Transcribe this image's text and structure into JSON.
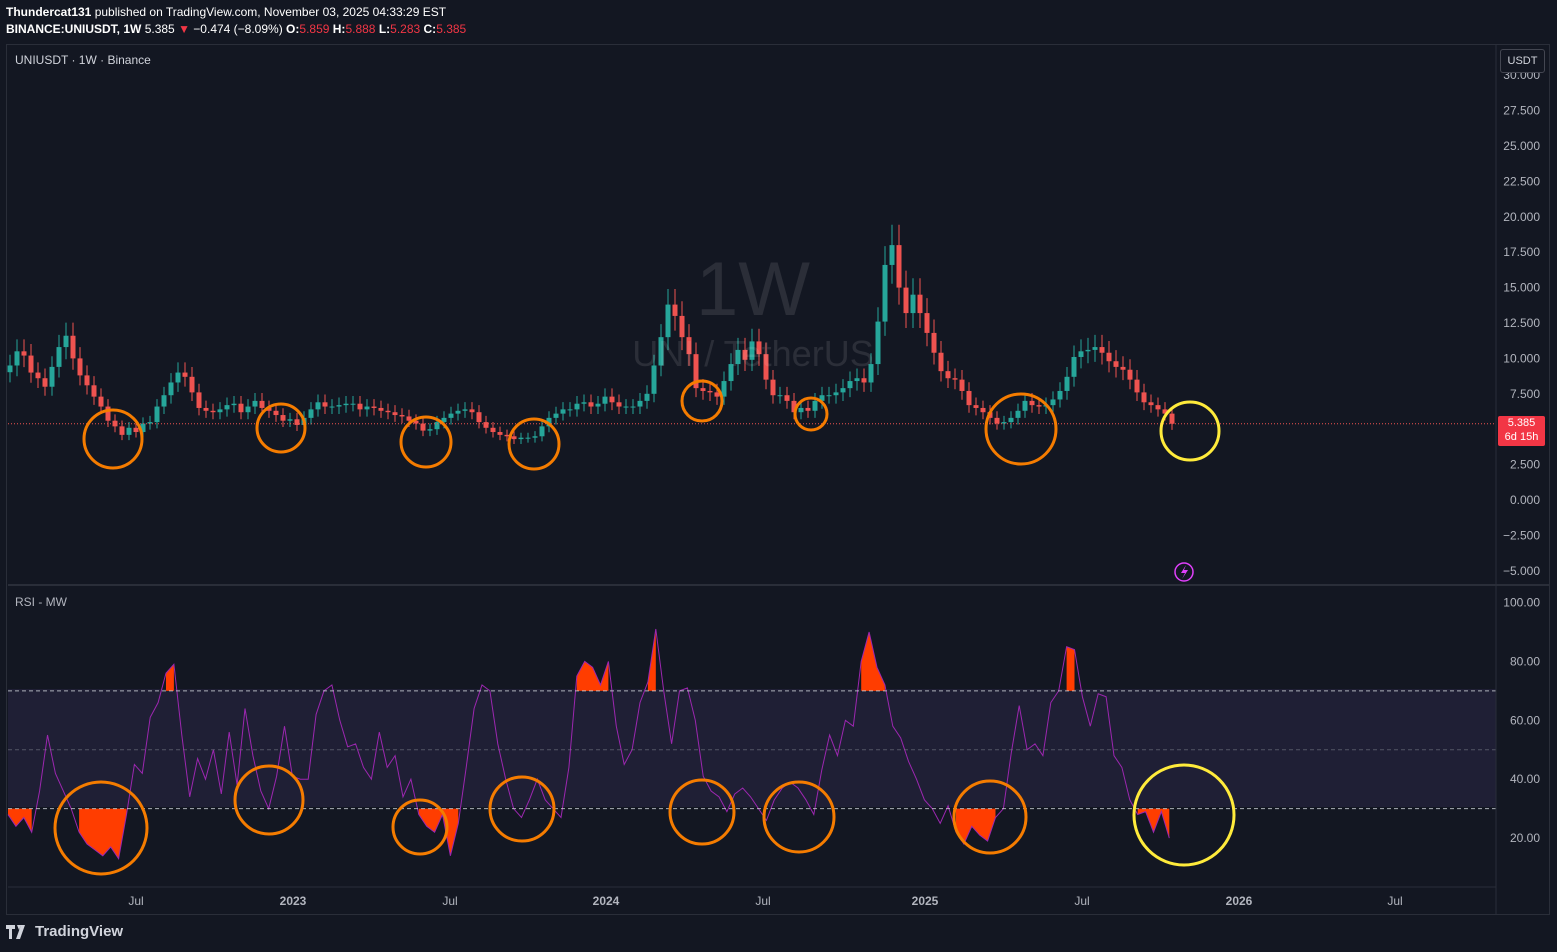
{
  "header": {
    "author": "Thundercat131",
    "published_text": "published on TradingView.com, November 03, 2025 04:33:29 EST",
    "symbol": "BINANCE:UNIUSDT, 1W",
    "last": "5.385",
    "change": "−0.474 (−8.09%)",
    "o_label": "O:",
    "o": "5.859",
    "h_label": "H:",
    "h": "5.888",
    "l_label": "L:",
    "l": "5.283",
    "c_label": "C:",
    "c": "5.385"
  },
  "pane_title": "UNIUSDT · 1W · Binance",
  "currency_badge": "USDT",
  "watermark": {
    "interval": "1W",
    "name": "UNI / TetherUS"
  },
  "price_tag": {
    "price": "5.385",
    "countdown": "6d 15h"
  },
  "rsi_title": "RSI - MW",
  "footer": {
    "brand": "TradingView"
  },
  "colors": {
    "background": "#131722",
    "up": "#26a69a",
    "down": "#ef5350",
    "rsi_line": "#9c27b0",
    "rsi_fill": "#ff3d00",
    "orange_circle": "#f57c00",
    "yellow_circle": "#ffeb3b"
  },
  "chart_data": [
    {
      "type": "candlestick",
      "title": "UNIUSDT · 1W · Binance",
      "ylim": [
        -5,
        30
      ],
      "y_ticks": [
        "30.000",
        "27.500",
        "25.000",
        "22.500",
        "20.000",
        "17.500",
        "15.000",
        "12.500",
        "10.000",
        "7.500",
        "5.385",
        "2.500",
        "0.000",
        "−2.500",
        "−5.000"
      ],
      "x_ticks": [
        "Jul",
        "2023",
        "Jul",
        "2024",
        "Jul",
        "2025",
        "Jul",
        "2026",
        "Jul"
      ],
      "close_series": [
        9.5,
        10.5,
        10.2,
        9.0,
        8.6,
        8.0,
        9.4,
        10.8,
        11.6,
        10.0,
        8.8,
        8.1,
        7.3,
        6.6,
        5.6,
        5.2,
        4.6,
        5.1,
        4.8,
        5.4,
        5.5,
        6.6,
        7.4,
        8.3,
        9.0,
        8.7,
        7.6,
        6.5,
        6.3,
        6.2,
        6.4,
        6.7,
        6.8,
        6.2,
        6.6,
        7.0,
        6.5,
        6.3,
        6.0,
        5.6,
        5.7,
        5.3,
        5.8,
        6.4,
        6.9,
        6.6,
        6.6,
        6.7,
        6.8,
        6.8,
        6.4,
        6.6,
        6.5,
        6.3,
        6.2,
        6.0,
        5.9,
        5.6,
        5.4,
        4.9,
        5.0,
        5.5,
        5.8,
        6.1,
        6.3,
        6.4,
        6.2,
        5.5,
        5.1,
        4.8,
        4.6,
        4.5,
        4.3,
        4.4,
        4.4,
        4.5,
        5.2,
        5.8,
        6.1,
        6.4,
        6.4,
        6.8,
        6.9,
        6.6,
        6.8,
        7.3,
        6.9,
        6.6,
        6.6,
        6.6,
        7.0,
        7.5,
        9.5,
        11.5,
        13.8,
        13.0,
        11.5,
        10.3,
        7.9,
        7.7,
        7.6,
        7.3,
        8.4,
        9.6,
        10.6,
        9.9,
        11.2,
        10.3,
        8.5,
        7.4,
        7.4,
        7.0,
        6.2,
        6.5,
        6.3,
        7.0,
        7.4,
        7.4,
        7.6,
        7.9,
        8.4,
        8.6,
        8.3,
        9.6,
        12.6,
        16.6,
        18.0,
        15.0,
        13.2,
        14.5,
        13.2,
        11.8,
        10.4,
        9.1,
        8.6,
        8.5,
        7.7,
        6.7,
        6.5,
        6.2,
        5.8,
        5.4,
        5.5,
        5.8,
        6.3,
        7.0,
        6.7,
        6.6,
        6.7,
        7.1,
        7.7,
        8.7,
        10.1,
        10.5,
        10.6,
        10.8,
        10.4,
        9.8,
        9.4,
        9.2,
        8.5,
        7.6,
        6.9,
        6.7,
        6.4,
        6.1,
        5.385
      ],
      "notes": "close_series is approximate weekly closes read from the chart, oldest to newest"
    },
    {
      "type": "line",
      "title": "RSI - MW",
      "ylim": [
        0,
        100
      ],
      "bands": {
        "upper": 70,
        "middle": 50,
        "lower": 30
      },
      "y_ticks": [
        "100.00",
        "80.00",
        "60.00",
        "40.00",
        "20.00"
      ],
      "series": [
        {
          "values": [
            28,
            24,
            27,
            22,
            36,
            55,
            42,
            36,
            30,
            22,
            18,
            16,
            14,
            17,
            13,
            28,
            45,
            42,
            61,
            66,
            76,
            79,
            55,
            34,
            47,
            40,
            50,
            35,
            56,
            38,
            64,
            48,
            36,
            30,
            41,
            58,
            41,
            40,
            40,
            62,
            70,
            72,
            60,
            51,
            52,
            44,
            40,
            56,
            44,
            48,
            34,
            40,
            28,
            24,
            22,
            28,
            14,
            25,
            44,
            64,
            72,
            70,
            52,
            40,
            30,
            27,
            33,
            40,
            33,
            30,
            27,
            44,
            75,
            80,
            78,
            72,
            80,
            58,
            45,
            50,
            66,
            73,
            91,
            70,
            52,
            70,
            71,
            60,
            41,
            36,
            34,
            29,
            35,
            37,
            34,
            30,
            26,
            33,
            37,
            39,
            37,
            33,
            28,
            43,
            55,
            48,
            60,
            58,
            80,
            90,
            78,
            72,
            58,
            54,
            46,
            40,
            33,
            30,
            25,
            31,
            22,
            18,
            24,
            21,
            19,
            27,
            30,
            49,
            65,
            50,
            52,
            48,
            66,
            70,
            85,
            84,
            68,
            58,
            69,
            68,
            48,
            44,
            33,
            28,
            29,
            22,
            29,
            20
          ]
        }
      ]
    }
  ]
}
